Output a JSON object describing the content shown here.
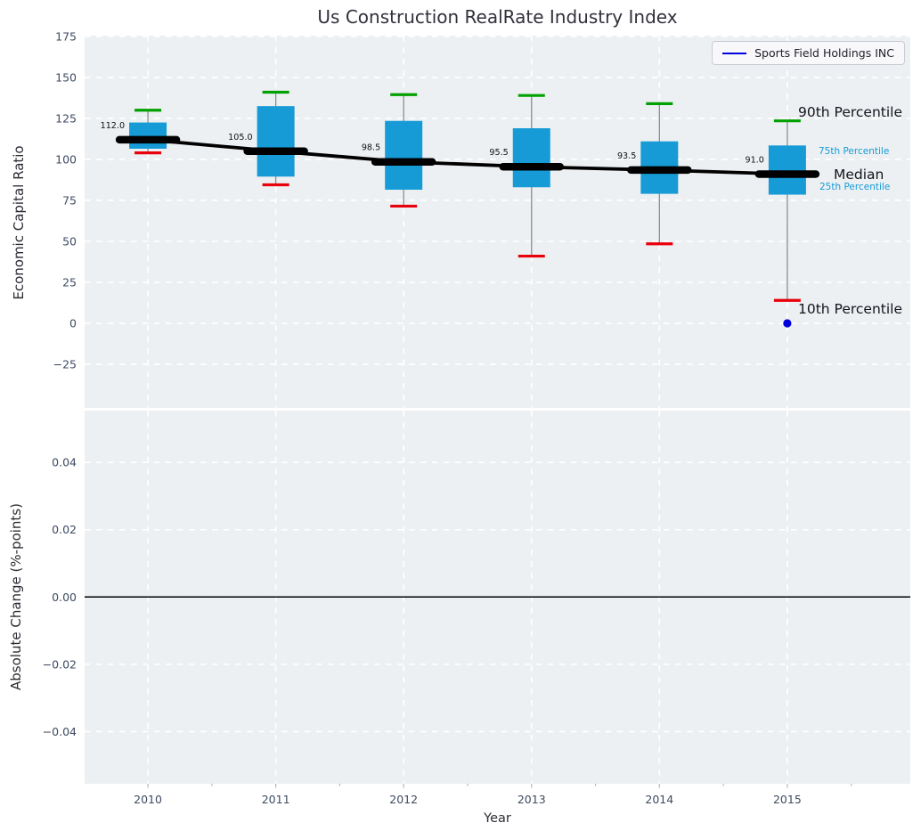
{
  "colors": {
    "box_fill": "#169bd7",
    "p90_cap": "#00a000",
    "p10_cap": "#e8000b",
    "median": "#000000",
    "whisker": "#8c8c8c",
    "company_blue": "#0000dd",
    "axes_bg": "#edf0f2",
    "grid": "#ffffff",
    "tick_label": "#3e4b61",
    "zero_line": "#000000"
  },
  "chart_data": [
    {
      "type": "boxplot",
      "title": "Us Construction RealRate Industry Index",
      "ylabel": "Economic Capital Ratio",
      "legend_label": "Sports Field Holdings INC",
      "legend_position": "upper right",
      "grid": true,
      "xlim": [
        2009.505,
        2015.962
      ],
      "ylim": [
        -51.6,
        175.5
      ],
      "yticks": [
        175,
        150,
        125,
        100,
        75,
        50,
        25,
        0,
        -25
      ],
      "ytick_labels": [
        "175",
        "150",
        "125",
        "100",
        "75",
        "50",
        "25",
        "0",
        "−25"
      ],
      "categories": [
        2010,
        2011,
        2012,
        2013,
        2014,
        2015
      ],
      "boxes": [
        {
          "year": 2010,
          "p10": 104.0,
          "p25": 106.5,
          "median": 112.0,
          "p75": 122.5,
          "p90": 130.0,
          "label": "112.0"
        },
        {
          "year": 2011,
          "p10": 84.5,
          "p25": 89.5,
          "median": 105.0,
          "p75": 132.5,
          "p90": 141.0,
          "label": "105.0"
        },
        {
          "year": 2012,
          "p10": 71.5,
          "p25": 81.5,
          "median": 98.5,
          "p75": 123.5,
          "p90": 139.5,
          "label": "98.5"
        },
        {
          "year": 2013,
          "p10": 41.0,
          "p25": 83.0,
          "median": 95.5,
          "p75": 119.0,
          "p90": 139.0,
          "label": "95.5"
        },
        {
          "year": 2014,
          "p10": 48.5,
          "p25": 79.0,
          "median": 93.5,
          "p75": 111.0,
          "p90": 134.0,
          "label": "93.5"
        },
        {
          "year": 2015,
          "p10": 14.0,
          "p25": 78.5,
          "median": 91.0,
          "p75": 108.5,
          "p90": 123.5,
          "label": "91.0"
        }
      ],
      "median_trend": [
        112.0,
        105.0,
        98.5,
        95.5,
        93.5,
        91.0
      ],
      "company_point": {
        "x": 2015,
        "y": 0.0
      },
      "annotations": [
        "90th Percentile",
        "75th Percentile",
        "Median",
        "25th Percentile",
        "10th Percentile"
      ]
    },
    {
      "type": "line",
      "ylabel": "Absolute Change (%-points)",
      "xlabel": "Year",
      "grid": true,
      "series": [],
      "zero_line": 0.0,
      "ylim": [
        -0.0555,
        0.0554
      ],
      "yticks": [
        0.04,
        0.02,
        0.0,
        -0.02,
        -0.04
      ],
      "ytick_labels": [
        "0.04",
        "0.02",
        "0.00",
        "−0.02",
        "−0.04"
      ],
      "xtick_labels": [
        "2010",
        "2011",
        "2012",
        "2013",
        "2014",
        "2015"
      ]
    }
  ]
}
